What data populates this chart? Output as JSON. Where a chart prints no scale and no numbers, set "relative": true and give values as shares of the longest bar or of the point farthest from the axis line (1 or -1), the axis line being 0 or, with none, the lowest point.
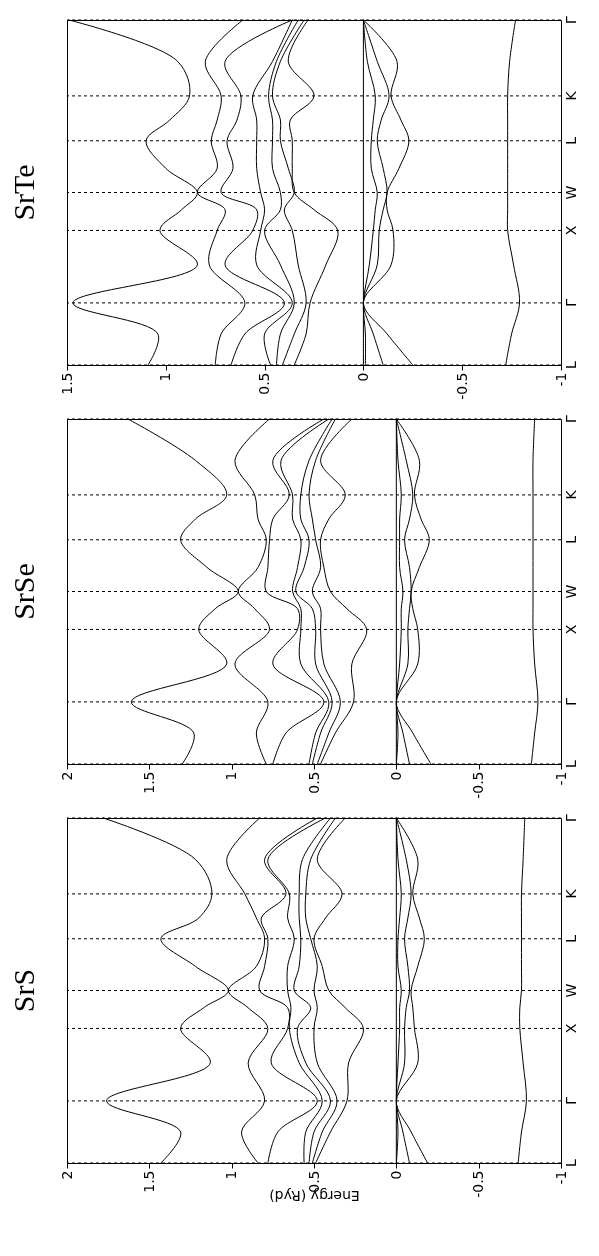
{
  "chart_data": [
    {
      "type": "line",
      "title": "SrTe",
      "xlim": [
        1.5,
        -1
      ],
      "xticks": [
        1.5,
        1,
        0.5,
        0,
        -0.5,
        -1
      ],
      "relative": true,
      "ref_lines": [
        {
          "axis": "x",
          "value": 0,
          "color": "#000000"
        },
        {
          "axis": "y",
          "value": 0,
          "label": "L",
          "line_style": "dashed",
          "color": "#000000"
        },
        {
          "axis": "y",
          "value": 0.18,
          "label": "Γ",
          "line_style": "dashed",
          "color": "#000000"
        },
        {
          "axis": "y",
          "value": 0.39,
          "label": "X",
          "line_style": "dashed",
          "color": "#000000"
        },
        {
          "axis": "y",
          "value": 0.5,
          "label": "W",
          "line_style": "dashed",
          "color": "#000000"
        },
        {
          "axis": "y",
          "value": 0.65,
          "label": "L",
          "line_style": "dashed",
          "color": "#000000"
        },
        {
          "axis": "y",
          "value": 0.78,
          "label": "K",
          "line_style": "dashed",
          "color": "#000000"
        },
        {
          "axis": "y",
          "value": 1,
          "label": "Γ",
          "line_style": "dashed",
          "color": "#000000"
        }
      ],
      "series": [
        {
          "color": "#000000",
          "x": [
            -0.72,
            -0.75,
            -0.79,
            -0.76,
            -0.73,
            -0.73,
            -0.73,
            -0.73,
            -0.73,
            -0.73,
            -0.73,
            -0.74,
            -0.77
          ],
          "values": [
            0,
            0.09,
            0.18,
            0.29,
            0.39,
            0.45,
            0.5,
            0.57,
            0.65,
            0.71,
            0.78,
            0.88,
            1
          ]
        },
        {
          "color": "#000000",
          "x": [
            -0.25,
            -0.12,
            0,
            -0.14,
            -0.15,
            -0.12,
            -0.12,
            -0.18,
            -0.23,
            -0.19,
            -0.14,
            -0.17,
            0
          ],
          "values": [
            0,
            0.09,
            0.18,
            0.29,
            0.39,
            0.45,
            0.5,
            0.57,
            0.65,
            0.71,
            0.78,
            0.88,
            1
          ]
        },
        {
          "color": "#000000",
          "x": [
            -0.1,
            -0.05,
            0,
            -0.07,
            -0.08,
            -0.1,
            -0.12,
            -0.1,
            -0.07,
            -0.09,
            -0.13,
            -0.07,
            0
          ],
          "values": [
            0,
            0.09,
            0.18,
            0.29,
            0.39,
            0.45,
            0.5,
            0.57,
            0.65,
            0.71,
            0.78,
            0.88,
            1
          ]
        },
        {
          "color": "#000000",
          "x": [
            -0.01,
            -0.01,
            0,
            -0.03,
            -0.05,
            -0.06,
            -0.07,
            -0.04,
            -0.04,
            -0.05,
            -0.06,
            -0.02,
            0
          ],
          "values": [
            0,
            0.09,
            0.18,
            0.29,
            0.39,
            0.45,
            0.5,
            0.57,
            0.65,
            0.71,
            0.78,
            0.88,
            1
          ]
        },
        {
          "color": "#000000",
          "x": [
            0.35,
            0.29,
            0.27,
            0.19,
            0.13,
            0.25,
            0.35,
            0.36,
            0.36,
            0.37,
            0.25,
            0.38,
            0.28
          ],
          "values": [
            0,
            0.09,
            0.18,
            0.29,
            0.39,
            0.45,
            0.5,
            0.57,
            0.65,
            0.71,
            0.78,
            0.88,
            1
          ]
        },
        {
          "color": "#000000",
          "x": [
            0.41,
            0.35,
            0.29,
            0.33,
            0.36,
            0.4,
            0.35,
            0.38,
            0.42,
            0.42,
            0.46,
            0.42,
            0.3
          ],
          "values": [
            0,
            0.09,
            0.18,
            0.29,
            0.39,
            0.45,
            0.5,
            0.57,
            0.65,
            0.71,
            0.78,
            0.88,
            1
          ]
        },
        {
          "color": "#000000",
          "x": [
            0.44,
            0.42,
            0.35,
            0.42,
            0.5,
            0.42,
            0.42,
            0.46,
            0.46,
            0.46,
            0.48,
            0.44,
            0.33
          ],
          "values": [
            0,
            0.09,
            0.18,
            0.29,
            0.39,
            0.45,
            0.5,
            0.57,
            0.65,
            0.71,
            0.78,
            0.88,
            1
          ]
        },
        {
          "color": "#000000",
          "x": [
            0.47,
            0.5,
            0.36,
            0.54,
            0.52,
            0.5,
            0.52,
            0.54,
            0.54,
            0.54,
            0.56,
            0.46,
            0.36
          ],
          "values": [
            0,
            0.09,
            0.18,
            0.29,
            0.39,
            0.45,
            0.5,
            0.57,
            0.65,
            0.71,
            0.78,
            0.88,
            1
          ]
        },
        {
          "color": "#000000",
          "x": [
            0.67,
            0.6,
            0.4,
            0.7,
            0.56,
            0.54,
            0.72,
            0.66,
            0.69,
            0.64,
            0.62,
            0.7,
            0.36
          ],
          "values": [
            0,
            0.09,
            0.18,
            0.29,
            0.39,
            0.45,
            0.5,
            0.57,
            0.65,
            0.71,
            0.78,
            0.88,
            1
          ]
        },
        {
          "color": "#000000",
          "x": [
            0.75,
            0.72,
            0.6,
            0.78,
            0.74,
            0.7,
            0.84,
            0.74,
            0.77,
            0.74,
            0.72,
            0.8,
            0.61
          ],
          "values": [
            0,
            0.09,
            0.18,
            0.29,
            0.39,
            0.45,
            0.5,
            0.57,
            0.65,
            0.71,
            0.78,
            0.88,
            1
          ]
        },
        {
          "color": "#000000",
          "x": [
            1.09,
            1.04,
            1.47,
            0.84,
            1.03,
            0.92,
            0.84,
            1.0,
            1.1,
            0.98,
            0.88,
            0.94,
            1.49
          ],
          "values": [
            0,
            0.09,
            0.18,
            0.29,
            0.39,
            0.45,
            0.5,
            0.57,
            0.65,
            0.71,
            0.78,
            0.88,
            1
          ]
        }
      ]
    },
    {
      "type": "line",
      "title": "SrSe",
      "xlim": [
        2,
        -1
      ],
      "xticks": [
        2,
        1.5,
        1,
        0.5,
        0,
        -0.5,
        -1
      ],
      "relative": true,
      "ref_lines": [
        {
          "axis": "x",
          "value": 0,
          "color": "#000000"
        },
        {
          "axis": "y",
          "value": 0,
          "label": "L",
          "line_style": "dashed",
          "color": "#000000"
        },
        {
          "axis": "y",
          "value": 0.18,
          "label": "Γ",
          "line_style": "dashed",
          "color": "#000000"
        },
        {
          "axis": "y",
          "value": 0.39,
          "label": "X",
          "line_style": "dashed",
          "color": "#000000"
        },
        {
          "axis": "y",
          "value": 0.5,
          "label": "W",
          "line_style": "dashed",
          "color": "#000000"
        },
        {
          "axis": "y",
          "value": 0.65,
          "label": "L",
          "line_style": "dashed",
          "color": "#000000"
        },
        {
          "axis": "y",
          "value": 0.78,
          "label": "K",
          "line_style": "dashed",
          "color": "#000000"
        },
        {
          "axis": "y",
          "value": 1,
          "label": "Γ",
          "line_style": "dashed",
          "color": "#000000"
        }
      ],
      "series": [
        {
          "color": "#000000",
          "x": [
            -0.82,
            -0.84,
            -0.86,
            -0.84,
            -0.83,
            -0.83,
            -0.83,
            -0.83,
            -0.83,
            -0.83,
            -0.83,
            -0.83,
            -0.84
          ],
          "values": [
            0,
            0.09,
            0.18,
            0.29,
            0.39,
            0.45,
            0.5,
            0.57,
            0.65,
            0.71,
            0.78,
            0.88,
            1
          ]
        },
        {
          "color": "#000000",
          "x": [
            -0.21,
            -0.1,
            0,
            -0.13,
            -0.13,
            -0.1,
            -0.09,
            -0.14,
            -0.2,
            -0.15,
            -0.11,
            -0.14,
            0
          ],
          "values": [
            0,
            0.09,
            0.18,
            0.29,
            0.39,
            0.45,
            0.5,
            0.57,
            0.65,
            0.71,
            0.78,
            0.88,
            1
          ]
        },
        {
          "color": "#000000",
          "x": [
            -0.08,
            -0.04,
            0,
            -0.07,
            -0.07,
            -0.08,
            -0.09,
            -0.08,
            -0.05,
            -0.08,
            -0.1,
            -0.06,
            0
          ],
          "values": [
            0,
            0.09,
            0.18,
            0.29,
            0.39,
            0.45,
            0.5,
            0.57,
            0.65,
            0.71,
            0.78,
            0.88,
            1
          ]
        },
        {
          "color": "#000000",
          "x": [
            0,
            -0.01,
            0,
            -0.02,
            -0.03,
            -0.03,
            -0.04,
            -0.02,
            -0.02,
            -0.02,
            -0.03,
            -0.01,
            0
          ],
          "values": [
            0,
            0.09,
            0.18,
            0.29,
            0.39,
            0.45,
            0.5,
            0.57,
            0.65,
            0.71,
            0.78,
            0.88,
            1
          ]
        },
        {
          "color": "#000000",
          "x": [
            0.46,
            0.37,
            0.26,
            0.27,
            0.18,
            0.3,
            0.4,
            0.44,
            0.46,
            0.41,
            0.31,
            0.46,
            0.27
          ],
          "values": [
            0,
            0.09,
            0.18,
            0.29,
            0.39,
            0.45,
            0.5,
            0.57,
            0.65,
            0.71,
            0.78,
            0.88,
            1
          ]
        },
        {
          "color": "#000000",
          "x": [
            0.48,
            0.41,
            0.34,
            0.44,
            0.46,
            0.46,
            0.51,
            0.46,
            0.49,
            0.51,
            0.53,
            0.49,
            0.37
          ],
          "values": [
            0,
            0.09,
            0.18,
            0.29,
            0.39,
            0.45,
            0.5,
            0.57,
            0.65,
            0.71,
            0.78,
            0.88,
            1
          ]
        },
        {
          "color": "#000000",
          "x": [
            0.51,
            0.46,
            0.39,
            0.49,
            0.49,
            0.51,
            0.61,
            0.56,
            0.53,
            0.58,
            0.58,
            0.53,
            0.39
          ],
          "values": [
            0,
            0.09,
            0.18,
            0.29,
            0.39,
            0.45,
            0.5,
            0.57,
            0.65,
            0.71,
            0.78,
            0.88,
            1
          ]
        },
        {
          "color": "#000000",
          "x": [
            0.53,
            0.49,
            0.41,
            0.58,
            0.58,
            0.58,
            0.63,
            0.6,
            0.58,
            0.63,
            0.63,
            0.7,
            0.41
          ],
          "values": [
            0,
            0.09,
            0.18,
            0.29,
            0.39,
            0.45,
            0.5,
            0.57,
            0.65,
            0.71,
            0.78,
            0.88,
            1
          ]
        },
        {
          "color": "#000000",
          "x": [
            0.75,
            0.67,
            0.44,
            0.75,
            0.6,
            0.6,
            0.79,
            0.78,
            0.77,
            0.75,
            0.65,
            0.75,
            0.44
          ],
          "values": [
            0,
            0.09,
            0.18,
            0.29,
            0.39,
            0.45,
            0.5,
            0.57,
            0.65,
            0.71,
            0.78,
            0.88,
            1
          ]
        },
        {
          "color": "#000000",
          "x": [
            0.79,
            0.85,
            0.78,
            0.98,
            0.77,
            0.86,
            0.96,
            0.84,
            0.79,
            0.84,
            0.86,
            0.98,
            0.77
          ],
          "values": [
            0,
            0.09,
            0.18,
            0.29,
            0.39,
            0.45,
            0.5,
            0.57,
            0.65,
            0.71,
            0.78,
            0.88,
            1
          ]
        },
        {
          "color": "#000000",
          "x": [
            1.3,
            1.23,
            1.61,
            1.03,
            1.2,
            1.1,
            0.96,
            1.15,
            1.31,
            1.22,
            1.03,
            1.22,
            1.63
          ],
          "values": [
            0,
            0.09,
            0.18,
            0.29,
            0.39,
            0.45,
            0.5,
            0.57,
            0.65,
            0.71,
            0.78,
            0.88,
            1
          ]
        }
      ]
    },
    {
      "type": "line",
      "title": "SrS",
      "xlabel": "Energy (Ryd)",
      "xlim": [
        2,
        -1
      ],
      "xticks": [
        2,
        1.5,
        1,
        0.5,
        0,
        -0.5,
        -1
      ],
      "relative": true,
      "ref_lines": [
        {
          "axis": "x",
          "value": 0,
          "color": "#000000"
        },
        {
          "axis": "y",
          "value": 0,
          "label": "L",
          "line_style": "dashed",
          "color": "#000000"
        },
        {
          "axis": "y",
          "value": 0.18,
          "label": "Γ",
          "line_style": "dashed",
          "color": "#000000"
        },
        {
          "axis": "y",
          "value": 0.39,
          "label": "X",
          "line_style": "dashed",
          "color": "#000000"
        },
        {
          "axis": "y",
          "value": 0.5,
          "label": "W",
          "line_style": "dashed",
          "color": "#000000"
        },
        {
          "axis": "y",
          "value": 0.65,
          "label": "L",
          "line_style": "dashed",
          "color": "#000000"
        },
        {
          "axis": "y",
          "value": 0.78,
          "label": "K",
          "line_style": "dashed",
          "color": "#000000"
        },
        {
          "axis": "y",
          "value": 1,
          "label": "Γ",
          "line_style": "dashed",
          "color": "#000000"
        }
      ],
      "series": [
        {
          "color": "#000000",
          "x": [
            -0.74,
            -0.76,
            -0.79,
            -0.77,
            -0.75,
            -0.75,
            -0.76,
            -0.76,
            -0.76,
            -0.76,
            -0.76,
            -0.77,
            -0.78
          ],
          "values": [
            0,
            0.09,
            0.18,
            0.29,
            0.39,
            0.45,
            0.5,
            0.57,
            0.65,
            0.71,
            0.78,
            0.88,
            1
          ]
        },
        {
          "color": "#000000",
          "x": [
            -0.19,
            -0.09,
            0,
            -0.13,
            -0.11,
            -0.1,
            -0.09,
            -0.13,
            -0.17,
            -0.14,
            -0.1,
            -0.13,
            0
          ],
          "values": [
            0,
            0.09,
            0.18,
            0.29,
            0.39,
            0.45,
            0.5,
            0.57,
            0.65,
            0.71,
            0.78,
            0.88,
            1
          ]
        },
        {
          "color": "#000000",
          "x": [
            -0.08,
            -0.04,
            0,
            -0.05,
            -0.05,
            -0.06,
            -0.08,
            -0.07,
            -0.05,
            -0.07,
            -0.09,
            -0.06,
            0
          ],
          "values": [
            0,
            0.09,
            0.18,
            0.29,
            0.39,
            0.45,
            0.5,
            0.57,
            0.65,
            0.71,
            0.78,
            0.88,
            1
          ]
        },
        {
          "color": "#000000",
          "x": [
            0,
            -0.01,
            0,
            -0.01,
            -0.02,
            -0.02,
            -0.03,
            -0.01,
            -0.01,
            -0.02,
            -0.03,
            -0.01,
            0
          ],
          "values": [
            0,
            0.09,
            0.18,
            0.29,
            0.39,
            0.45,
            0.5,
            0.57,
            0.65,
            0.71,
            0.78,
            0.88,
            1
          ]
        },
        {
          "color": "#000000",
          "x": [
            0.49,
            0.4,
            0.3,
            0.29,
            0.2,
            0.31,
            0.41,
            0.45,
            0.5,
            0.43,
            0.33,
            0.48,
            0.31
          ],
          "values": [
            0,
            0.09,
            0.18,
            0.29,
            0.39,
            0.45,
            0.5,
            0.57,
            0.65,
            0.71,
            0.78,
            0.88,
            1
          ]
        },
        {
          "color": "#000000",
          "x": [
            0.51,
            0.45,
            0.36,
            0.48,
            0.5,
            0.48,
            0.5,
            0.48,
            0.52,
            0.55,
            0.55,
            0.52,
            0.37
          ],
          "values": [
            0,
            0.09,
            0.18,
            0.29,
            0.39,
            0.45,
            0.5,
            0.57,
            0.65,
            0.71,
            0.78,
            0.88,
            1
          ]
        },
        {
          "color": "#000000",
          "x": [
            0.53,
            0.5,
            0.4,
            0.55,
            0.6,
            0.52,
            0.62,
            0.59,
            0.58,
            0.59,
            0.59,
            0.57,
            0.4
          ],
          "values": [
            0,
            0.09,
            0.18,
            0.29,
            0.39,
            0.45,
            0.5,
            0.57,
            0.65,
            0.71,
            0.78,
            0.88,
            1
          ]
        },
        {
          "color": "#000000",
          "x": [
            0.56,
            0.55,
            0.45,
            0.59,
            0.65,
            0.64,
            0.66,
            0.66,
            0.62,
            0.66,
            0.65,
            0.78,
            0.43
          ],
          "values": [
            0,
            0.09,
            0.18,
            0.29,
            0.39,
            0.45,
            0.5,
            0.57,
            0.65,
            0.71,
            0.78,
            0.88,
            1
          ]
        },
        {
          "color": "#000000",
          "x": [
            0.78,
            0.72,
            0.48,
            0.76,
            0.66,
            0.66,
            0.83,
            0.8,
            0.78,
            0.82,
            0.67,
            0.8,
            0.48
          ],
          "values": [
            0,
            0.09,
            0.18,
            0.29,
            0.39,
            0.45,
            0.5,
            0.57,
            0.65,
            0.71,
            0.78,
            0.88,
            1
          ]
        },
        {
          "color": "#000000",
          "x": [
            0.84,
            0.94,
            0.8,
            0.9,
            0.78,
            0.9,
            1.02,
            0.85,
            0.8,
            0.85,
            0.92,
            1.03,
            0.83
          ],
          "values": [
            0,
            0.09,
            0.18,
            0.29,
            0.39,
            0.45,
            0.5,
            0.57,
            0.65,
            0.71,
            0.78,
            0.88,
            1
          ]
        },
        {
          "color": "#000000",
          "x": [
            1.43,
            1.31,
            1.76,
            1.13,
            1.31,
            1.17,
            1.02,
            1.22,
            1.43,
            1.2,
            1.12,
            1.22,
            1.78
          ],
          "values": [
            0,
            0.09,
            0.18,
            0.29,
            0.39,
            0.45,
            0.5,
            0.57,
            0.65,
            0.71,
            0.78,
            0.88,
            1
          ]
        }
      ]
    }
  ]
}
